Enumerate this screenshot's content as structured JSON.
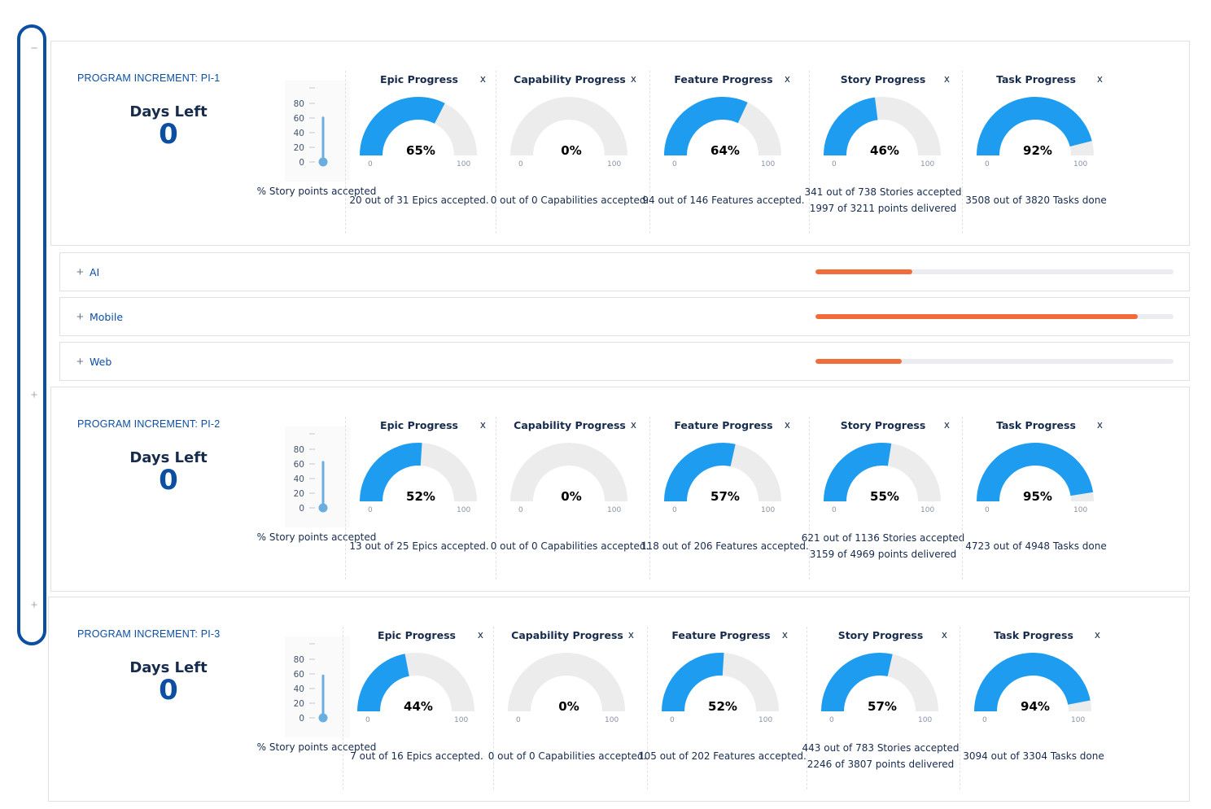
{
  "rail": {
    "collapse_symbol": "−",
    "expand_symbol": "+"
  },
  "labels": {
    "days_left": "Days Left",
    "story_points_caption": "% Story points accepted",
    "gauge_min": "0",
    "gauge_max": "100",
    "close_symbol": "x"
  },
  "thermometer_ticks": [
    "80",
    "60",
    "40",
    "20",
    "0"
  ],
  "colors": {
    "accent_blue": "#0b4ea2",
    "gauge_fill": "#1e9df0",
    "gauge_track": "#ececec",
    "team_bar": "#f26b3a",
    "thermo_blue": "#6aaee0"
  },
  "increments": [
    {
      "title": "PROGRAM INCREMENT: PI-1",
      "days_left": "0",
      "story_points_fraction": 0.62,
      "gauges": [
        {
          "title": "Epic Progress",
          "percent": 65,
          "percent_text": "65%",
          "caption": [
            "20 out of 31 Epics accepted."
          ]
        },
        {
          "title": "Capability Progress",
          "percent": 0,
          "percent_text": "0%",
          "caption": [
            "0 out of 0 Capabilities accepted."
          ]
        },
        {
          "title": "Feature Progress",
          "percent": 64,
          "percent_text": "64%",
          "caption": [
            "94 out of 146 Features accepted."
          ]
        },
        {
          "title": "Story Progress",
          "percent": 46,
          "percent_text": "46%",
          "caption": [
            "341 out of 738 Stories accepted",
            "1997 of 3211 points delivered"
          ]
        },
        {
          "title": "Task Progress",
          "percent": 92,
          "percent_text": "92%",
          "caption": [
            "3508 out of 3820 Tasks done"
          ]
        }
      ]
    },
    {
      "title": "PROGRAM INCREMENT: PI-2",
      "days_left": "0",
      "story_points_fraction": 0.64,
      "gauges": [
        {
          "title": "Epic Progress",
          "percent": 52,
          "percent_text": "52%",
          "caption": [
            "13 out of 25 Epics accepted."
          ]
        },
        {
          "title": "Capability Progress",
          "percent": 0,
          "percent_text": "0%",
          "caption": [
            "0 out of 0 Capabilities accepted."
          ]
        },
        {
          "title": "Feature Progress",
          "percent": 57,
          "percent_text": "57%",
          "caption": [
            "118 out of 206 Features accepted."
          ]
        },
        {
          "title": "Story Progress",
          "percent": 55,
          "percent_text": "55%",
          "caption": [
            "621 out of 1136 Stories accepted",
            "3159 of 4969 points delivered"
          ]
        },
        {
          "title": "Task Progress",
          "percent": 95,
          "percent_text": "95%",
          "caption": [
            "4723 out of 4948 Tasks done"
          ]
        }
      ]
    },
    {
      "title": "PROGRAM INCREMENT: PI-3",
      "days_left": "0",
      "story_points_fraction": 0.59,
      "gauges": [
        {
          "title": "Epic Progress",
          "percent": 44,
          "percent_text": "44%",
          "caption": [
            "7 out of 16 Epics accepted."
          ]
        },
        {
          "title": "Capability Progress",
          "percent": 0,
          "percent_text": "0%",
          "caption": [
            "0 out of 0 Capabilities accepted."
          ]
        },
        {
          "title": "Feature Progress",
          "percent": 52,
          "percent_text": "52%",
          "caption": [
            "105 out of 202 Features accepted."
          ]
        },
        {
          "title": "Story Progress",
          "percent": 57,
          "percent_text": "57%",
          "caption": [
            "443 out of 783 Stories accepted",
            "2246 of 3807 points delivered"
          ]
        },
        {
          "title": "Task Progress",
          "percent": 94,
          "percent_text": "94%",
          "caption": [
            "3094 out of 3304 Tasks done"
          ]
        }
      ]
    }
  ],
  "teams": [
    {
      "name": "AI",
      "progress": 0.27
    },
    {
      "name": "Mobile",
      "progress": 0.9
    },
    {
      "name": "Web",
      "progress": 0.24
    }
  ]
}
